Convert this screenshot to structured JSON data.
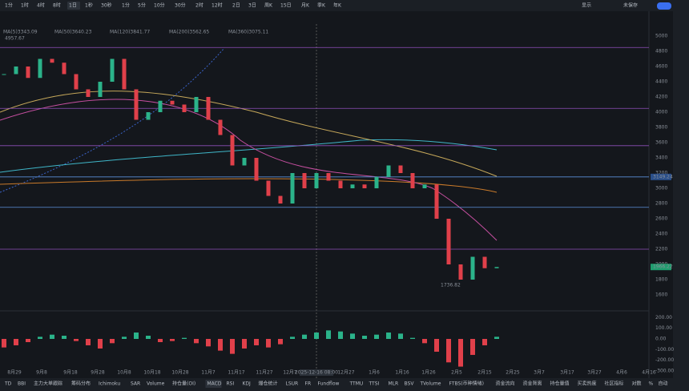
{
  "toolbar": {
    "intervals": [
      "1分",
      "1时",
      "4时",
      "8时",
      "1日",
      "1秒",
      "30秒",
      "1分",
      "5分",
      "10分",
      "30分",
      "2时",
      "12时",
      "2日",
      "3日",
      "周K",
      "15日",
      "月K",
      "季K",
      "年K"
    ],
    "active": 4,
    "right": [
      "未保存",
      "显示"
    ]
  },
  "legend": [
    "MA(5)3343.09",
    "MA(50)3640.23",
    "MA(120)3841.77",
    "MA(200)3562.65",
    "MA(360)3075.11"
  ],
  "high_label": "4957.67",
  "low_label": "1736.82",
  "price_axis": {
    "ticks": [
      5000,
      4800,
      4600,
      4400,
      4200,
      4000,
      3800,
      3600,
      3400,
      3200,
      3000,
      2800,
      2600,
      2400,
      2200,
      2000,
      1800,
      1600
    ],
    "badges": [
      {
        "value": 3149.24,
        "label": "3149.24"
      },
      {
        "value": 1966.22,
        "label": "1966.22"
      }
    ]
  },
  "levels": [
    {
      "value": 4850,
      "color": "#8e4fb8"
    },
    {
      "value": 4050,
      "color": "#8e4fb8"
    },
    {
      "value": 3560,
      "color": "#8e4fb8"
    },
    {
      "value": 3149.24,
      "color": "#5b8fd8"
    },
    {
      "value": 2750,
      "color": "#5b8fd8"
    },
    {
      "value": 2200,
      "color": "#8e4fb8"
    }
  ],
  "closes": [
    4500,
    4600,
    4450,
    4700,
    4650,
    4500,
    4300,
    4200,
    4400,
    4700,
    4300,
    3900,
    4000,
    4150,
    4100,
    4000,
    4200,
    3900,
    3700,
    3300,
    3400,
    3100,
    2900,
    2800,
    3200,
    3000,
    3200,
    3100,
    3000,
    3050,
    3000,
    3150,
    3300,
    3200,
    3000,
    3050,
    2600,
    2000,
    1800,
    2100,
    1950,
    1966.22
  ],
  "macd": {
    "ticks": [
      {
        "value": 200,
        "label": "200.00"
      },
      {
        "value": 100,
        "label": "100.00"
      },
      {
        "value": 0,
        "label": "0.00"
      },
      {
        "value": -100,
        "label": "-100.00"
      },
      {
        "value": -200,
        "label": "-200.00"
      },
      {
        "value": -300,
        "label": "-300.00"
      }
    ],
    "hist": [
      -80,
      -60,
      -30,
      20,
      40,
      30,
      -20,
      -60,
      -90,
      -40,
      20,
      60,
      30,
      -30,
      -20,
      10,
      -40,
      -70,
      -110,
      -140,
      -90,
      -60,
      -80,
      -50,
      20,
      40,
      60,
      80,
      70,
      50,
      30,
      40,
      60,
      50,
      10,
      -40,
      -120,
      -220,
      -260,
      -150,
      -60,
      20
    ]
  },
  "dates": [
    "8月29",
    "9月8",
    "9月18",
    "9月28",
    "10月8",
    "10月18",
    "10月28",
    "11月7",
    "11月17",
    "11月27",
    "12月7",
    "2025-12-16 08:00",
    "12月27",
    "1月6",
    "1月16",
    "1月26",
    "2月5",
    "2月15",
    "2月25",
    "3月7",
    "3月17",
    "3月27",
    "4月6",
    "4月16"
  ],
  "tabs": [
    "TD",
    "BBI",
    "主力大单跟踪",
    "筹码分布",
    "Ichimoku",
    "SAR",
    "Volume",
    "持仓量(OI)",
    "MACD",
    "RSI",
    "KDJ",
    "爆仓统计",
    "LSUR",
    "FR",
    "Fundflow",
    "TTMU",
    "TTSI",
    "MLR",
    "BSV",
    "TVolume",
    "FTBS(币种情绪)",
    "资金流向",
    "资金背离",
    "持仓量值",
    "买卖热度",
    "社区指标",
    "对数",
    "%",
    "自动"
  ],
  "active_tab": 8
}
